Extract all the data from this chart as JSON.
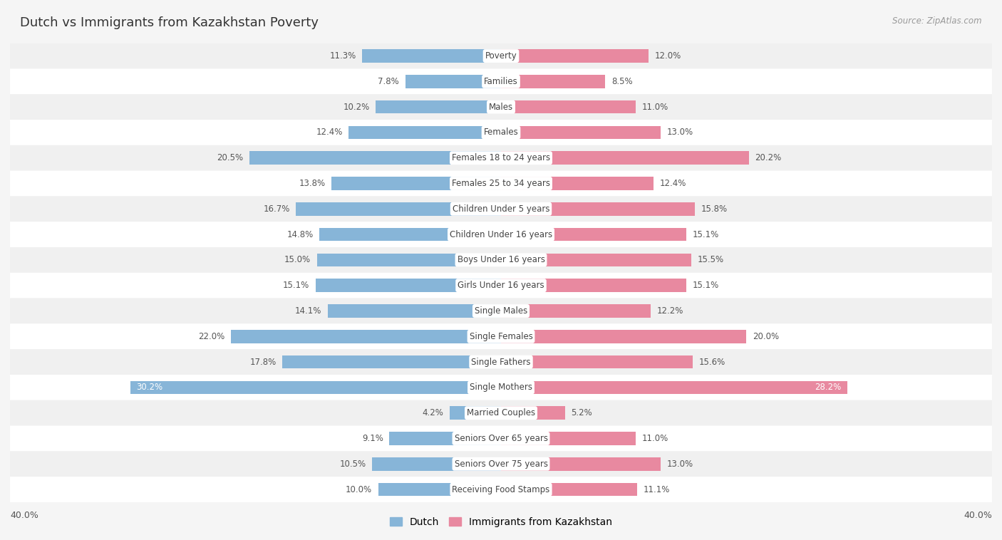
{
  "title": "Dutch vs Immigrants from Kazakhstan Poverty",
  "source": "Source: ZipAtlas.com",
  "categories": [
    "Poverty",
    "Families",
    "Males",
    "Females",
    "Females 18 to 24 years",
    "Females 25 to 34 years",
    "Children Under 5 years",
    "Children Under 16 years",
    "Boys Under 16 years",
    "Girls Under 16 years",
    "Single Males",
    "Single Females",
    "Single Fathers",
    "Single Mothers",
    "Married Couples",
    "Seniors Over 65 years",
    "Seniors Over 75 years",
    "Receiving Food Stamps"
  ],
  "dutch_values": [
    11.3,
    7.8,
    10.2,
    12.4,
    20.5,
    13.8,
    16.7,
    14.8,
    15.0,
    15.1,
    14.1,
    22.0,
    17.8,
    30.2,
    4.2,
    9.1,
    10.5,
    10.0
  ],
  "kazakh_values": [
    12.0,
    8.5,
    11.0,
    13.0,
    20.2,
    12.4,
    15.8,
    15.1,
    15.5,
    15.1,
    12.2,
    20.0,
    15.6,
    28.2,
    5.2,
    11.0,
    13.0,
    11.1
  ],
  "dutch_color": "#87b5d8",
  "kazakh_color": "#e889a0",
  "row_colors": [
    "#f0f0f0",
    "#ffffff"
  ],
  "bar_height": 0.52,
  "xlim": 40.0,
  "background_color": "#f5f5f5",
  "title_fontsize": 13,
  "value_fontsize": 8.5,
  "category_fontsize": 8.5,
  "legend_fontsize": 10,
  "source_fontsize": 8.5
}
